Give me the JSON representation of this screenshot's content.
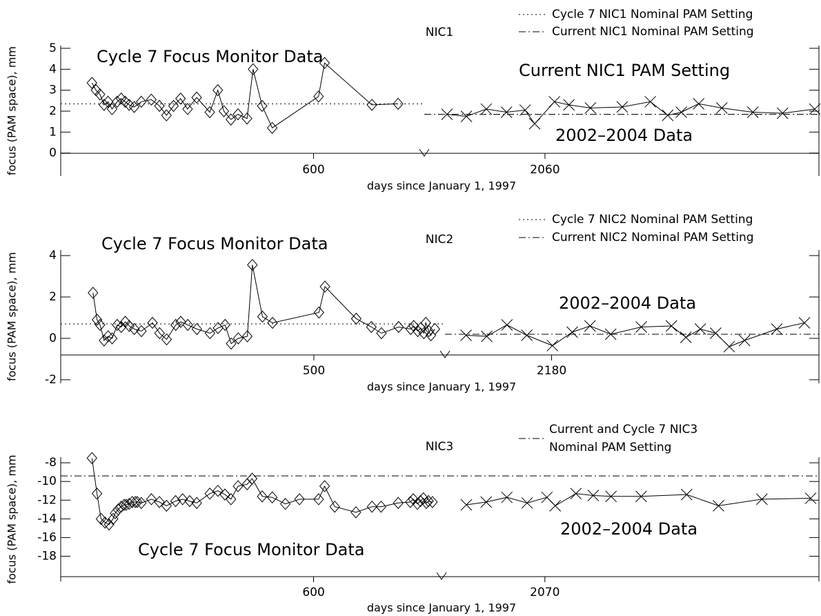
{
  "chart_data": [
    {
      "type": "line",
      "title": "NIC1",
      "y_label": "focus (PAM space), mm",
      "x_label": "days since January 1, 1997",
      "ylim": [
        -1.1,
        5.13
      ],
      "yticks": [
        0,
        1,
        2,
        3,
        4,
        5
      ],
      "xaxes": [
        {
          "xlim": [
            349,
            710
          ],
          "xticks": [
            600
          ]
        },
        {
          "xlim": [
            1768,
            2723
          ],
          "xticks": [
            2060
          ]
        }
      ],
      "annotations": [
        "Current NIC1 PAM Setting"
      ],
      "series": [
        {
          "name": "Cycle 7 Focus Monitor Data",
          "marker": "diamond",
          "color": "#000000",
          "xaxis": 0,
          "x": [
            380,
            384,
            388,
            392,
            396,
            400,
            405,
            409,
            413,
            417,
            422,
            429,
            439,
            447,
            454,
            461,
            468,
            475,
            484,
            497,
            505,
            511,
            518,
            525,
            534,
            540,
            549,
            559,
            605,
            611,
            658,
            684
          ],
          "values": [
            3.35,
            3.0,
            2.8,
            2.3,
            2.45,
            2.1,
            2.45,
            2.6,
            2.45,
            2.3,
            2.2,
            2.45,
            2.55,
            2.25,
            1.8,
            2.25,
            2.6,
            2.1,
            2.65,
            1.95,
            3.0,
            2.0,
            1.6,
            1.85,
            1.65,
            4.0,
            2.25,
            1.2,
            2.7,
            4.3,
            2.3,
            2.35
          ]
        },
        {
          "name": "2002–2004 Data",
          "marker": "x",
          "color": "#000000",
          "xaxis": 1,
          "x": [
            1823,
            1870,
            1918,
            1967,
            2012,
            2035,
            2083,
            2118,
            2170,
            2247,
            2315,
            2357,
            2390,
            2432,
            2488,
            2563,
            2635,
            2713
          ],
          "values": [
            1.85,
            1.75,
            2.1,
            1.95,
            2.05,
            1.4,
            2.45,
            2.3,
            2.15,
            2.2,
            2.45,
            1.8,
            1.95,
            2.35,
            2.15,
            1.95,
            1.9,
            2.1
          ]
        }
      ],
      "reference_lines": [
        {
          "name": "Cycle 7 NIC1 Nominal PAM Setting",
          "value": 2.35,
          "style": "dotted",
          "xaxis": 0
        },
        {
          "name": "Current NIC1 Nominal PAM Setting",
          "value": 1.85,
          "style": "dashdot",
          "xaxis": 1
        }
      ]
    },
    {
      "type": "line",
      "title": "NIC2",
      "y_label": "focus (PAM space), mm",
      "x_label": "days since January 1, 1997",
      "ylim": [
        -2.17,
        4.27
      ],
      "yticks": [
        -2,
        0,
        2,
        4
      ],
      "xaxes": [
        {
          "xlim": [
            249,
            630
          ],
          "xticks": [
            500
          ]
        },
        {
          "xlim": [
            1922,
            2827
          ],
          "xticks": [
            2180
          ]
        }
      ],
      "series": [
        {
          "name": "Cycle 7 Focus Monitor Data",
          "marker": "diamond",
          "color": "#000000",
          "xaxis": 0,
          "x": [
            281,
            285,
            288,
            292,
            296,
            300,
            305,
            309,
            313,
            317,
            322,
            329,
            340,
            347,
            354,
            363,
            368,
            375,
            384,
            397,
            405,
            412,
            418,
            425,
            434,
            439,
            449,
            459,
            505,
            511,
            542,
            557,
            567,
            584,
            596,
            599,
            603,
            606,
            609,
            611,
            614,
            616,
            620
          ],
          "values": [
            2.2,
            0.9,
            0.65,
            -0.1,
            0.1,
            0,
            0.65,
            0.55,
            0.8,
            0.6,
            0.45,
            0.35,
            0.75,
            0.25,
            -0.05,
            0.65,
            0.8,
            0.65,
            0.45,
            0.25,
            0.5,
            0.65,
            -0.25,
            0,
            0.1,
            3.55,
            1.05,
            0.75,
            1.25,
            2.5,
            0.95,
            0.55,
            0.25,
            0.55,
            0.45,
            0.6,
            0.35,
            0.5,
            0.25,
            0.75,
            0.35,
            0.15,
            0.45
          ]
        },
        {
          "name": "2002–2004 Data",
          "marker": "x",
          "color": "#000000",
          "xaxis": 1,
          "x": [
            1973,
            2023,
            2072,
            2120,
            2182,
            2230,
            2273,
            2323,
            2397,
            2470,
            2505,
            2540,
            2577,
            2610,
            2647,
            2725,
            2792
          ],
          "values": [
            0.15,
            0.1,
            0.65,
            0.15,
            -0.35,
            0.3,
            0.6,
            0.2,
            0.55,
            0.6,
            0.05,
            0.45,
            0.25,
            -0.4,
            -0.1,
            0.45,
            0.75
          ]
        }
      ],
      "reference_lines": [
        {
          "name": "Cycle 7 NIC2 Nominal PAM Setting",
          "value": 0.7,
          "style": "dotted",
          "xaxis": 0
        },
        {
          "name": "Current NIC2 Nominal PAM Setting",
          "value": 0.2,
          "style": "dashdot",
          "xaxis": 1
        }
      ]
    },
    {
      "type": "line",
      "title": "NIC3",
      "y_label": "focus (PAM space), mm",
      "x_label": "days since January 1, 1997",
      "ylim": [
        -20.7,
        -7.4
      ],
      "yticks": [
        -18,
        -16,
        -14,
        -12,
        -10,
        -8
      ],
      "xaxes": [
        {
          "xlim": [
            349,
            727
          ],
          "xticks": [
            600
          ]
        },
        {
          "xlim": [
            1820,
            2733
          ],
          "xticks": [
            2070
          ]
        }
      ],
      "series": [
        {
          "name": "Cycle 7 Focus Monitor Data",
          "marker": "diamond",
          "color": "#000000",
          "xaxis": 0,
          "x": [
            380,
            385,
            389,
            393,
            397,
            401,
            403,
            406,
            409,
            412,
            414,
            417,
            420,
            423,
            425,
            429,
            439,
            447,
            454,
            463,
            470,
            477,
            484,
            497,
            505,
            512,
            518,
            525,
            534,
            539,
            549,
            559,
            572,
            586,
            605,
            611,
            621,
            642,
            658,
            667,
            684,
            696,
            699,
            703,
            706,
            709,
            712,
            714,
            718
          ],
          "values": [
            -7.5,
            -11.3,
            -14.0,
            -14.4,
            -14.6,
            -14.0,
            -13.4,
            -13.0,
            -12.7,
            -12.5,
            -12.5,
            -12.4,
            -12.2,
            -12.2,
            -12.2,
            -12.3,
            -11.9,
            -12.2,
            -12.6,
            -12.1,
            -11.9,
            -12.1,
            -12.3,
            -11.3,
            -11.0,
            -11.4,
            -11.9,
            -10.5,
            -10.3,
            -9.7,
            -11.6,
            -11.7,
            -12.4,
            -11.9,
            -11.9,
            -10.5,
            -12.7,
            -13.3,
            -12.7,
            -12.7,
            -12.3,
            -12.2,
            -11.9,
            -12.4,
            -12.1,
            -11.8,
            -12.3,
            -12.1,
            -12.2
          ]
        },
        {
          "name": "2002–2004 Data",
          "marker": "x",
          "color": "#000000",
          "xaxis": 1,
          "x": [
            1880,
            1928,
            1978,
            2027,
            2075,
            2095,
            2145,
            2187,
            2230,
            2303,
            2413,
            2490,
            2595,
            2713
          ],
          "values": [
            -12.5,
            -12.2,
            -11.7,
            -12.3,
            -11.7,
            -12.6,
            -11.3,
            -11.5,
            -11.6,
            -11.6,
            -11.4,
            -12.6,
            -11.9,
            -11.8
          ]
        }
      ],
      "reference_lines": [
        {
          "name": [
            "Current and Cycle 7 NIC3",
            "Nominal PAM Setting"
          ],
          "value": -9.4,
          "style": "dashdot"
        }
      ]
    }
  ]
}
